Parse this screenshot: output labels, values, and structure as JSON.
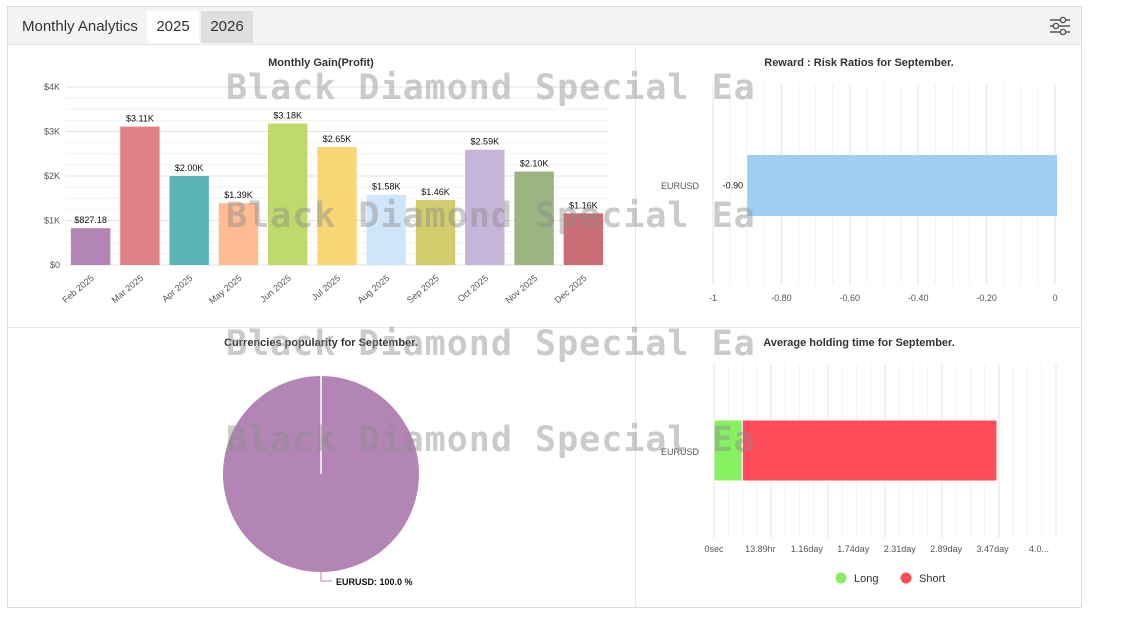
{
  "header": {
    "title": "Monthly Analytics",
    "tabs": [
      {
        "label": "2025",
        "active": true
      },
      {
        "label": "2026",
        "active": false
      }
    ],
    "filter_icon": "sliders-icon"
  },
  "watermark": "Black Diamond Special Ea",
  "colors": {
    "panel_bg": "#ffffff",
    "header_bg": "#f4f4f4",
    "long": "#87f061",
    "short": "#ff4c5a",
    "risk_bar": "#9ecff3",
    "pie": "#b385b5"
  },
  "chart_data": [
    {
      "type": "bar",
      "title": "Monthly Gain(Profit)",
      "categories": [
        "Feb 2025",
        "Mar 2025",
        "Apr 2025",
        "May 2025",
        "Jun 2025",
        "Jul 2025",
        "Aug 2025",
        "Sep 2025",
        "Oct 2025",
        "Nov 2025",
        "Dec 2025"
      ],
      "values": [
        827.18,
        3110,
        2000,
        1390,
        3180,
        2650,
        1580,
        1460,
        2590,
        2100,
        1160
      ],
      "data_labels": [
        "$827.18",
        "$3.11K",
        "$2.00K",
        "$1.39K",
        "$3.18K",
        "$2.65K",
        "$1.58K",
        "$1.46K",
        "$2.59K",
        "$2.10K",
        "$1.16K"
      ],
      "bar_colors": [
        "#b385b5",
        "#e08285",
        "#5bb5b6",
        "#ffbb91",
        "#bfd96b",
        "#f7d774",
        "#cfe6fa",
        "#d2cd6c",
        "#c6b4d9",
        "#9bb482",
        "#c86e74"
      ],
      "y_ticks": [
        "$0",
        "$1K",
        "$2K",
        "$3K",
        "$4K"
      ],
      "ylim": [
        0,
        4000
      ],
      "grid": true
    },
    {
      "type": "bar",
      "orientation": "horizontal",
      "title": "Reward : Risk Ratios for September.",
      "categories": [
        "EURUSD"
      ],
      "values": [
        -0.9
      ],
      "data_labels": [
        "-0.90"
      ],
      "x_ticks": [
        "-1",
        "-0.80",
        "-0.60",
        "-0.40",
        "-0.20",
        "0"
      ],
      "xlim": [
        -1,
        0
      ],
      "grid": true
    },
    {
      "type": "pie",
      "title": "Currencies popularity for September.",
      "slices": [
        {
          "label": "EURUSD",
          "value": 100.0
        }
      ],
      "data_labels": [
        "EURUSD: 100.0 %"
      ]
    },
    {
      "type": "bar",
      "orientation": "horizontal",
      "stacked": true,
      "title": "Average holding time for September.",
      "categories": [
        "EURUSD"
      ],
      "series": [
        {
          "name": "Long",
          "values": [
            0.1
          ]
        },
        {
          "name": "Short",
          "values": [
            0.9
          ]
        }
      ],
      "x_ticks": [
        "0sec",
        "13.89hr",
        "1.16day",
        "1.74day",
        "2.31day",
        "2.89day",
        "3.47day",
        "4.0..."
      ],
      "legend": "bottom",
      "grid": true
    }
  ]
}
